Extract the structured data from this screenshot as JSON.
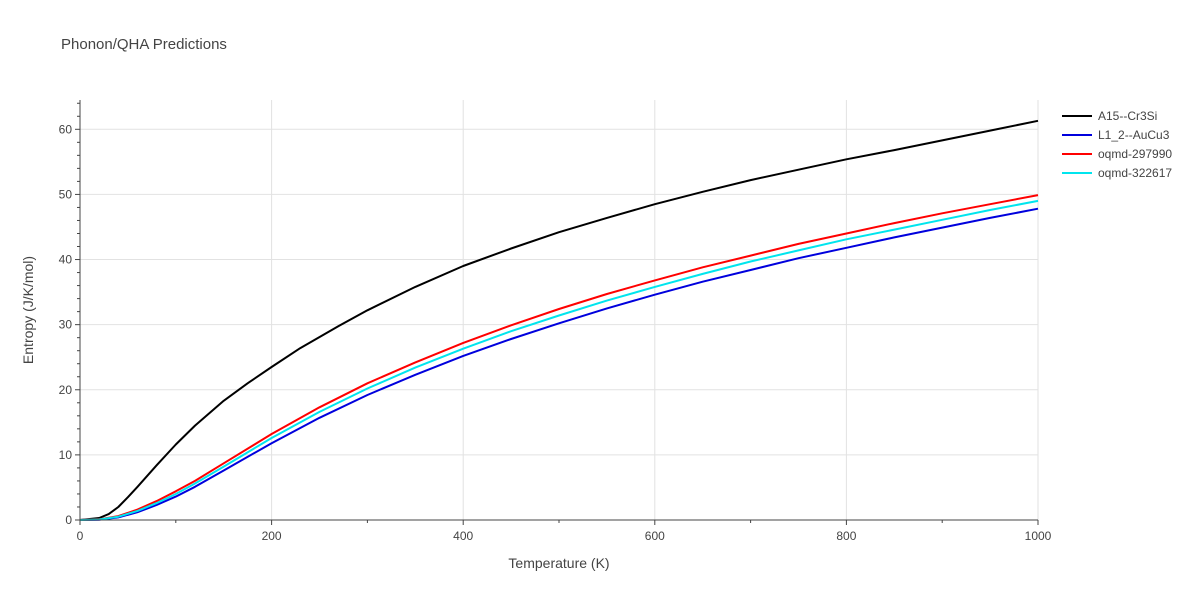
{
  "chart_data": {
    "type": "line",
    "title": "Phonon/QHA Predictions",
    "xlabel": "Temperature (K)",
    "ylabel": "Entropy (J/K/mol)",
    "xlim": [
      0,
      1000
    ],
    "ylim": [
      0,
      64.5
    ],
    "xticks": [
      0,
      200,
      400,
      600,
      800,
      1000
    ],
    "yticks": [
      0,
      10,
      20,
      30,
      40,
      50,
      60
    ],
    "grid": true,
    "legend_position": "top-right",
    "series": [
      {
        "name": "A15--Cr3Si",
        "color": "#000000",
        "x": [
          0,
          20,
          30,
          40,
          50,
          60,
          80,
          100,
          120,
          150,
          175,
          200,
          230,
          270,
          300,
          350,
          400,
          450,
          500,
          550,
          600,
          650,
          700,
          750,
          800,
          850,
          900,
          950,
          1000
        ],
        "y": [
          0,
          0.3,
          0.9,
          2.0,
          3.5,
          5.1,
          8.4,
          11.6,
          14.5,
          18.3,
          21.0,
          23.5,
          26.4,
          29.8,
          32.2,
          35.8,
          39.0,
          41.7,
          44.2,
          46.4,
          48.5,
          50.4,
          52.2,
          53.8,
          55.4,
          56.8,
          58.3,
          59.8,
          61.3
        ]
      },
      {
        "name": "L1_2--AuCu3",
        "color": "#0000dd",
        "x": [
          0,
          20,
          40,
          60,
          80,
          100,
          120,
          150,
          200,
          250,
          300,
          350,
          400,
          450,
          500,
          550,
          600,
          650,
          700,
          750,
          800,
          850,
          900,
          950,
          1000
        ],
        "y": [
          0,
          0.05,
          0.4,
          1.2,
          2.3,
          3.6,
          5.1,
          7.6,
          11.8,
          15.7,
          19.2,
          22.3,
          25.2,
          27.8,
          30.2,
          32.5,
          34.6,
          36.6,
          38.4,
          40.2,
          41.8,
          43.4,
          44.9,
          46.4,
          47.8
        ]
      },
      {
        "name": "oqmd-297990",
        "color": "#ff0000",
        "x": [
          0,
          20,
          40,
          60,
          80,
          100,
          120,
          150,
          200,
          250,
          300,
          350,
          400,
          450,
          500,
          550,
          600,
          650,
          700,
          750,
          800,
          850,
          900,
          950,
          1000
        ],
        "y": [
          0,
          0.1,
          0.6,
          1.6,
          2.9,
          4.4,
          6.0,
          8.7,
          13.2,
          17.3,
          21.0,
          24.2,
          27.2,
          29.9,
          32.4,
          34.7,
          36.8,
          38.8,
          40.6,
          42.4,
          44.0,
          45.6,
          47.1,
          48.5,
          49.9
        ]
      },
      {
        "name": "oqmd-322617",
        "color": "#00e5ee",
        "x": [
          0,
          20,
          40,
          60,
          80,
          100,
          120,
          150,
          200,
          250,
          300,
          350,
          400,
          450,
          500,
          550,
          600,
          650,
          700,
          750,
          800,
          850,
          900,
          950,
          1000
        ],
        "y": [
          0,
          0.08,
          0.5,
          1.4,
          2.6,
          4.0,
          5.6,
          8.2,
          12.6,
          16.6,
          20.2,
          23.4,
          26.3,
          29.0,
          31.4,
          33.7,
          35.8,
          37.8,
          39.7,
          41.4,
          43.1,
          44.6,
          46.1,
          47.6,
          49.0
        ]
      }
    ]
  }
}
